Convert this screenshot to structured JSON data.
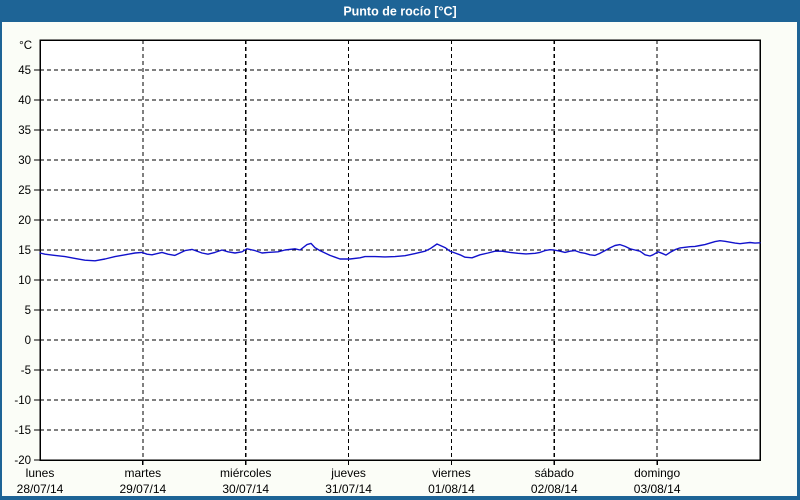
{
  "title": "Punto de rocío [°C]",
  "colors": {
    "titlebar": "#1e6496",
    "window_border": "#1e6496",
    "title_text": "#ffffff",
    "background": "#fbfdf7",
    "plot_background": "#ffffff",
    "grid": "#000000",
    "axis": "#000000",
    "label_text": "#000000",
    "line": "#1212cc"
  },
  "chart_data": {
    "type": "line",
    "title": "Punto de rocío [°C]",
    "unit_label": "°C",
    "xlabel": "",
    "ylabel": "°C",
    "ylim": [
      -20,
      50
    ],
    "yticks": [
      -20,
      -15,
      -10,
      -5,
      0,
      5,
      10,
      15,
      20,
      25,
      30,
      35,
      40,
      45
    ],
    "grid": "dashed",
    "legend": "none",
    "xlim_days": [
      0,
      7
    ],
    "x_days": [
      {
        "name": "lunes",
        "date": "28/07/14"
      },
      {
        "name": "martes",
        "date": "29/07/14"
      },
      {
        "name": "miércoles",
        "date": "30/07/14"
      },
      {
        "name": "jueves",
        "date": "31/07/14"
      },
      {
        "name": "viernes",
        "date": "01/08/14"
      },
      {
        "name": "sábado",
        "date": "02/08/14"
      },
      {
        "name": "domingo",
        "date": "03/08/14"
      }
    ],
    "series": [
      {
        "name": "Punto de rocío",
        "color": "#1212cc",
        "points": [
          [
            0.0,
            14.5
          ],
          [
            0.049,
            14.3
          ],
          [
            0.146,
            14.1
          ],
          [
            0.243,
            13.9
          ],
          [
            0.34,
            13.6
          ],
          [
            0.437,
            13.3
          ],
          [
            0.535,
            13.2
          ],
          [
            0.632,
            13.5
          ],
          [
            0.729,
            13.9
          ],
          [
            0.826,
            14.2
          ],
          [
            0.924,
            14.5
          ],
          [
            0.991,
            14.6
          ],
          [
            1.04,
            14.3
          ],
          [
            1.089,
            14.2
          ],
          [
            1.186,
            14.6
          ],
          [
            1.244,
            14.3
          ],
          [
            1.312,
            14.1
          ],
          [
            1.41,
            14.9
          ],
          [
            1.478,
            15.1
          ],
          [
            1.575,
            14.5
          ],
          [
            1.633,
            14.3
          ],
          [
            1.701,
            14.6
          ],
          [
            1.769,
            15.0
          ],
          [
            1.828,
            14.7
          ],
          [
            1.896,
            14.5
          ],
          [
            1.964,
            14.7
          ],
          [
            2.012,
            15.2
          ],
          [
            2.09,
            14.9
          ],
          [
            2.158,
            14.5
          ],
          [
            2.217,
            14.6
          ],
          [
            2.314,
            14.7
          ],
          [
            2.382,
            15.0
          ],
          [
            2.479,
            15.2
          ],
          [
            2.528,
            15.0
          ],
          [
            2.596,
            15.9
          ],
          [
            2.635,
            16.1
          ],
          [
            2.673,
            15.4
          ],
          [
            2.722,
            14.9
          ],
          [
            2.771,
            14.5
          ],
          [
            2.819,
            14.1
          ],
          [
            2.868,
            13.8
          ],
          [
            2.917,
            13.5
          ],
          [
            3.014,
            13.5
          ],
          [
            3.111,
            13.7
          ],
          [
            3.16,
            13.9
          ],
          [
            3.257,
            13.9
          ],
          [
            3.354,
            13.85
          ],
          [
            3.451,
            13.9
          ],
          [
            3.549,
            14.05
          ],
          [
            3.646,
            14.4
          ],
          [
            3.743,
            14.8
          ],
          [
            3.792,
            15.2
          ],
          [
            3.86,
            16.0
          ],
          [
            3.938,
            15.4
          ],
          [
            3.986,
            14.8
          ],
          [
            4.035,
            14.5
          ],
          [
            4.083,
            14.2
          ],
          [
            4.132,
            13.8
          ],
          [
            4.2,
            13.7
          ],
          [
            4.278,
            14.2
          ],
          [
            4.356,
            14.5
          ],
          [
            4.424,
            14.8
          ],
          [
            4.492,
            14.8
          ],
          [
            4.569,
            14.6
          ],
          [
            4.647,
            14.45
          ],
          [
            4.725,
            14.35
          ],
          [
            4.813,
            14.45
          ],
          [
            4.861,
            14.6
          ],
          [
            4.91,
            14.9
          ],
          [
            4.958,
            15.05
          ],
          [
            4.997,
            15.0
          ],
          [
            5.056,
            14.8
          ],
          [
            5.104,
            14.6
          ],
          [
            5.153,
            14.8
          ],
          [
            5.201,
            14.9
          ],
          [
            5.25,
            14.6
          ],
          [
            5.299,
            14.45
          ],
          [
            5.347,
            14.2
          ],
          [
            5.396,
            14.1
          ],
          [
            5.444,
            14.45
          ],
          [
            5.493,
            14.9
          ],
          [
            5.542,
            15.35
          ],
          [
            5.59,
            15.75
          ],
          [
            5.639,
            15.9
          ],
          [
            5.688,
            15.6
          ],
          [
            5.736,
            15.2
          ],
          [
            5.785,
            15.0
          ],
          [
            5.833,
            14.8
          ],
          [
            5.882,
            14.2
          ],
          [
            5.931,
            14.0
          ],
          [
            5.96,
            14.2
          ],
          [
            6.008,
            14.7
          ],
          [
            6.047,
            14.45
          ],
          [
            6.086,
            14.15
          ],
          [
            6.125,
            14.6
          ],
          [
            6.174,
            15.05
          ],
          [
            6.222,
            15.35
          ],
          [
            6.271,
            15.45
          ],
          [
            6.319,
            15.55
          ],
          [
            6.368,
            15.6
          ],
          [
            6.417,
            15.75
          ],
          [
            6.465,
            15.9
          ],
          [
            6.514,
            16.15
          ],
          [
            6.563,
            16.4
          ],
          [
            6.611,
            16.55
          ],
          [
            6.66,
            16.45
          ],
          [
            6.708,
            16.3
          ],
          [
            6.757,
            16.15
          ],
          [
            6.806,
            16.05
          ],
          [
            6.854,
            16.15
          ],
          [
            6.903,
            16.25
          ],
          [
            6.951,
            16.15
          ],
          [
            7.0,
            16.2
          ]
        ]
      }
    ]
  }
}
